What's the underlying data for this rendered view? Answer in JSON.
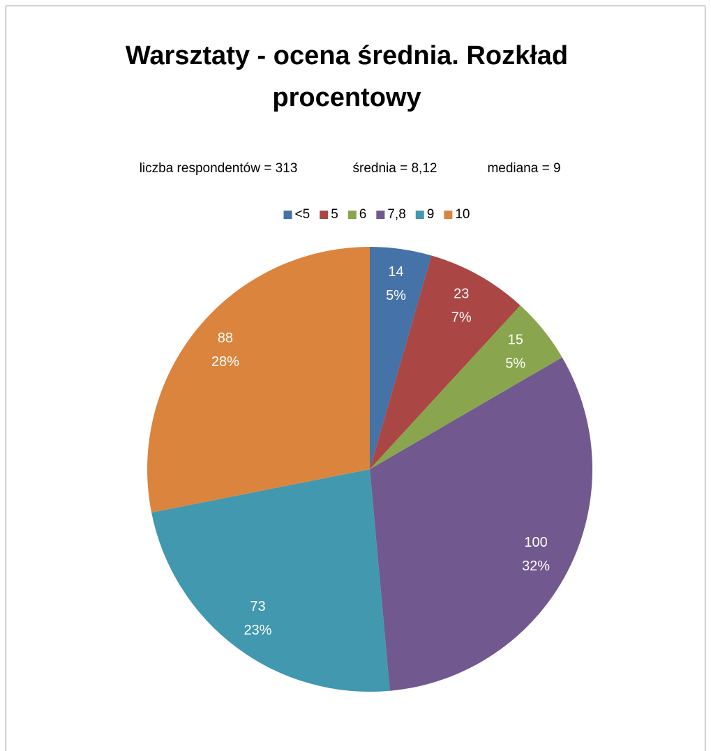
{
  "chart_data": {
    "type": "pie",
    "title": [
      "Warsztaty - ocena średnia. Rozkład",
      "procentowy"
    ],
    "annotations": [
      "liczba respondentów = 313",
      "średnia = 8,12",
      "mediana = 9"
    ],
    "categories": [
      "<5",
      "5",
      "6",
      "7,8",
      "9",
      "10"
    ],
    "values": [
      14,
      23,
      15,
      100,
      73,
      88
    ],
    "percent_labels": [
      "5%",
      "7%",
      "5%",
      "32%",
      "23%",
      "28%"
    ],
    "colors": [
      "#4572a7",
      "#aa4643",
      "#89a54e",
      "#71588f",
      "#4198af",
      "#db843d"
    ],
    "legend": "top"
  }
}
